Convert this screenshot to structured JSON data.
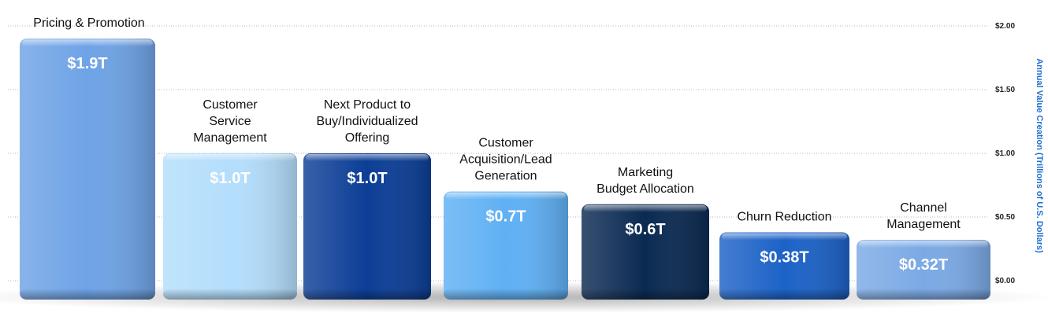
{
  "chart_data": {
    "type": "bar",
    "categories": [
      "Pricing & Promotion",
      "Customer Service Management",
      "Next Product to Buy/Individualized Offering",
      "Customer Acquisition/Lead Generation",
      "Marketing Budget Allocation",
      "Churn Reduction",
      "Channel Management"
    ],
    "category_label_lines": [
      [
        "Pricing & Promotion"
      ],
      [
        "Customer",
        "Service",
        "Management"
      ],
      [
        "Next Product to",
        "Buy/Individualized",
        "Offering"
      ],
      [
        "Customer",
        "Acquisition/Lead",
        "Generation"
      ],
      [
        "Marketing",
        "Budget Allocation"
      ],
      [
        "Churn Reduction"
      ],
      [
        "Channel",
        "Management"
      ]
    ],
    "values": [
      1.9,
      1.0,
      1.0,
      0.7,
      0.6,
      0.38,
      0.32
    ],
    "data_labels": [
      "$1.9T",
      "$1.0T",
      "$1.0T",
      "$0.7T",
      "$0.6T",
      "$0.38T",
      "$0.32T"
    ],
    "bar_colors": [
      "#6ea3e6",
      "#b3defc",
      "#0c3e96",
      "#5fb0f4",
      "#0b2a52",
      "#1c62c7",
      "#7ba9e5"
    ],
    "ylabel": "Annual Value Creation (Trillions of U.S. Dollars)",
    "ylim": [
      0,
      2
    ],
    "yticks": [
      0,
      0.5,
      1.0,
      1.5,
      2.0
    ],
    "ytick_labels": [
      "$0.00",
      "$0.50",
      "$1.00",
      "$1.50",
      "$2.00"
    ],
    "y_axis_position": "right",
    "grid": true,
    "legend": "none"
  }
}
